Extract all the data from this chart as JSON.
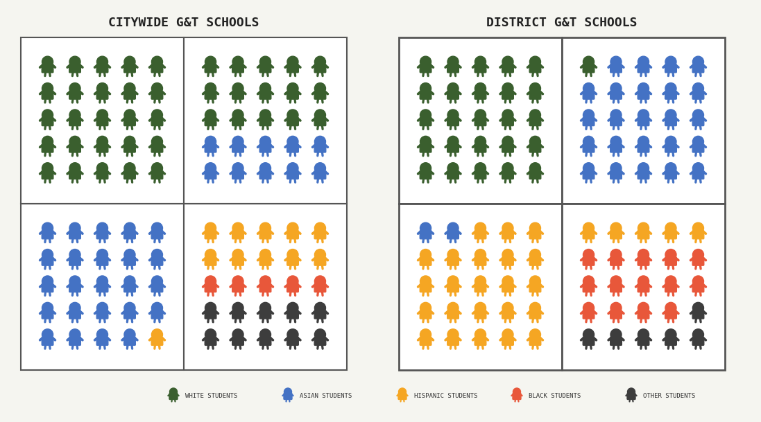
{
  "title_left": "CITYWIDE G&T SCHOOLS",
  "title_right": "DISTRICT G&T SCHOOLS",
  "colors": {
    "white": "#3a5f2e",
    "asian": "#4472c4",
    "hispanic": "#f5a623",
    "black": "#e8573a",
    "other": "#3d3d3d"
  },
  "citywide": {
    "top_left": {
      "white": 25
    },
    "top_right": {
      "white": 15,
      "asian": 10
    },
    "bottom_left": {
      "asian": 24,
      "hispanic": 1
    },
    "bottom_right": {
      "hispanic": 10,
      "black": 5,
      "other": 10
    }
  },
  "district": {
    "top_left": {
      "white": 25
    },
    "top_right": {
      "white": 1,
      "asian": 24
    },
    "bottom_left": {
      "asian": 2,
      "hispanic": 23
    },
    "bottom_right": {
      "hispanic": 5,
      "black": 14,
      "other": 6
    }
  },
  "legend": [
    {
      "label": "WHITE STUDENTS",
      "color": "#3a5f2e"
    },
    {
      "label": "ASIAN STUDENTS",
      "color": "#4472c4"
    },
    {
      "label": "HISPANIC STUDENTS",
      "color": "#f5a623"
    },
    {
      "label": "BLACK STUDENTS",
      "color": "#e8573a"
    },
    {
      "label": "OTHER STUDENTS",
      "color": "#3d3d3d"
    }
  ],
  "bg_color": "#f5f5f0",
  "box_bg": "#ffffff",
  "title_fontsize": 13,
  "grid_rows": 5,
  "grid_cols": 5
}
